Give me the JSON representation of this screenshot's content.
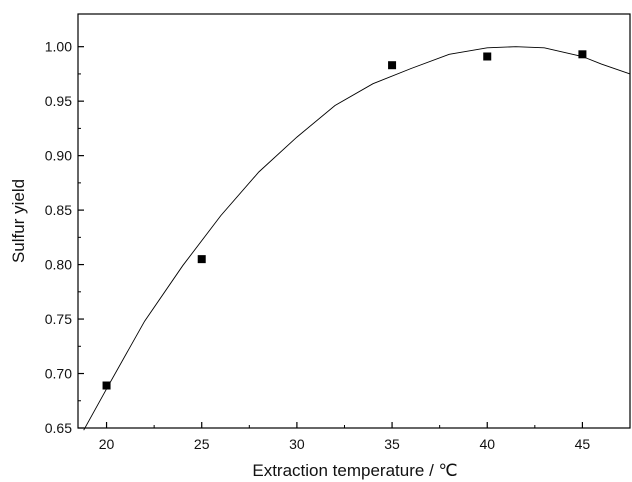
{
  "chart_data": {
    "type": "scatter",
    "xlabel": "Extraction temperature / ℃",
    "ylabel": "Sulfur yield",
    "xlim": [
      18.5,
      47.5
    ],
    "ylim": [
      0.65,
      1.03
    ],
    "x_ticks": [
      20,
      25,
      30,
      35,
      40,
      45
    ],
    "y_ticks": [
      0.65,
      0.7,
      0.75,
      0.8,
      0.85,
      0.9,
      0.95,
      1.0
    ],
    "x_tick_labels": [
      "20",
      "25",
      "30",
      "35",
      "40",
      "45"
    ],
    "y_tick_labels": [
      "0.65",
      "0.70",
      "0.75",
      "0.80",
      "0.85",
      "0.90",
      "0.95",
      "1.00"
    ],
    "grid": false,
    "legend": "none",
    "series": [
      {
        "marker": "square",
        "color": "#000000",
        "x": [
          20,
          25,
          35,
          40,
          45
        ],
        "y": [
          0.689,
          0.805,
          0.983,
          0.991,
          0.993
        ]
      }
    ],
    "fit_curve": {
      "color": "#000000",
      "x": [
        18.8,
        20,
        22,
        24,
        26,
        28,
        30,
        32,
        34,
        36,
        38,
        40,
        41.5,
        43,
        45,
        46,
        47.5
      ],
      "y": [
        0.648,
        0.686,
        0.748,
        0.799,
        0.845,
        0.885,
        0.917,
        0.946,
        0.966,
        0.98,
        0.993,
        0.999,
        1.0,
        0.999,
        0.991,
        0.984,
        0.975
      ]
    }
  }
}
